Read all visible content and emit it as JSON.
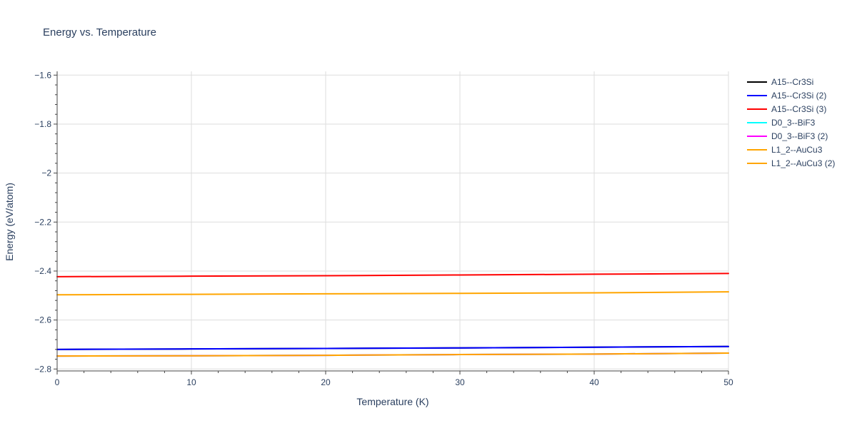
{
  "chart_data": {
    "type": "line",
    "title": "Energy vs. Temperature",
    "xlabel": "Temperature (K)",
    "ylabel": "Energy (eV/atom)",
    "xlim": [
      0,
      50
    ],
    "ylim": [
      -2.8,
      -1.6
    ],
    "x_ticks": [
      "0",
      "10",
      "20",
      "30",
      "40",
      "50"
    ],
    "y_ticks": [
      "−2.8",
      "−2.6",
      "−2.4",
      "−2.2",
      "−2",
      "−1.8",
      "−1.6"
    ],
    "grid": true,
    "legend_position": "top-right",
    "series": [
      {
        "name": "A15--Cr3Si",
        "color": "#000000",
        "x": [
          0,
          10,
          20,
          30,
          40,
          50
        ],
        "y": [
          -2.72,
          -2.718,
          -2.716,
          -2.714,
          -2.711,
          -2.708
        ]
      },
      {
        "name": "A15--Cr3Si (2)",
        "color": "#0000ff",
        "x": [
          0,
          10,
          20,
          30,
          40,
          50
        ],
        "y": [
          -2.72,
          -2.718,
          -2.716,
          -2.714,
          -2.711,
          -2.708
        ]
      },
      {
        "name": "A15--Cr3Si (3)",
        "color": "#ff0000",
        "x": [
          0,
          10,
          20,
          30,
          40,
          50
        ],
        "y": [
          -2.423,
          -2.421,
          -2.419,
          -2.416,
          -2.413,
          -2.41
        ]
      },
      {
        "name": "D0_3--BiF3",
        "color": "#00ffff",
        "x": [
          0,
          10,
          20,
          30,
          40,
          50
        ],
        "y": [
          -2.747,
          -2.746,
          -2.744,
          -2.741,
          -2.739,
          -2.735
        ]
      },
      {
        "name": "D0_3--BiF3 (2)",
        "color": "#ff00ff",
        "x": [
          0,
          10,
          20,
          30,
          40,
          50
        ],
        "y": [
          -2.747,
          -2.746,
          -2.744,
          -2.741,
          -2.739,
          -2.735
        ]
      },
      {
        "name": "L1_2--AuCu3",
        "color": "#ffa500",
        "x": [
          0,
          10,
          20,
          30,
          40,
          50
        ],
        "y": [
          -2.497,
          -2.495,
          -2.493,
          -2.491,
          -2.489,
          -2.485
        ]
      },
      {
        "name": "L1_2--AuCu3 (2)",
        "color": "#ffa500",
        "x": [
          0,
          10,
          20,
          30,
          40,
          50
        ],
        "y": [
          -2.747,
          -2.746,
          -2.744,
          -2.741,
          -2.739,
          -2.735
        ]
      }
    ]
  }
}
